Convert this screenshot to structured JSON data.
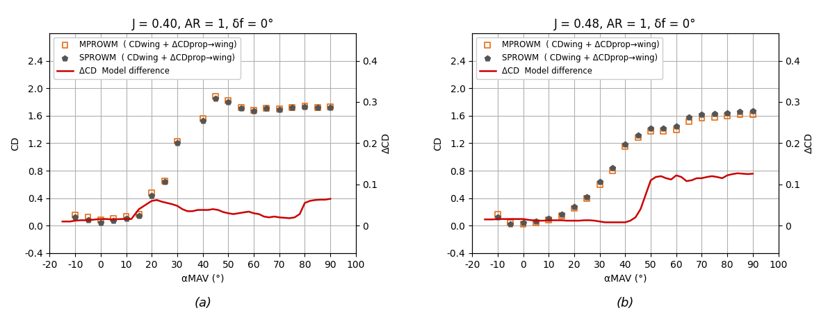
{
  "chart_data": [
    {
      "type": "scatter",
      "title": "J = 0.40, AR = 1, δf = 0°",
      "subtitle": "(a)",
      "x_label": "αMAV (°)",
      "y_label": "CD",
      "y2_label": "ΔCD",
      "xlim": [
        -20,
        100
      ],
      "xticks": [
        -20,
        -10,
        0,
        10,
        20,
        30,
        40,
        50,
        60,
        70,
        80,
        90,
        100
      ],
      "ylim": [
        -0.4,
        2.8
      ],
      "yticks": [
        -0.4,
        0.0,
        0.4,
        0.8,
        1.2,
        1.6,
        2.0,
        2.4
      ],
      "y2lim": [
        -0.06666666666666667,
        0.4666666666666667
      ],
      "y2ticks": [
        0,
        0.1,
        0.2,
        0.3,
        0.4
      ],
      "grid": true,
      "legend": "upper left",
      "series": [
        {
          "name": "MPROWM  ( CDwing + ΔCDprop→wing)",
          "type": "scatter",
          "marker": "square",
          "color": "#E87722",
          "x": [
            -10,
            -5,
            0,
            5,
            10,
            15,
            20,
            25,
            30,
            40,
            45,
            50,
            55,
            60,
            65,
            70,
            75,
            80,
            85,
            90
          ],
          "values": [
            0.155,
            0.12,
            0.08,
            0.1,
            0.13,
            0.16,
            0.48,
            0.65,
            1.23,
            1.56,
            1.88,
            1.82,
            1.72,
            1.68,
            1.71,
            1.7,
            1.72,
            1.74,
            1.72,
            1.73
          ]
        },
        {
          "name": "SPROWM  ( CDwing + ΔCDprop→wing)",
          "type": "scatter",
          "marker": "pentagon",
          "color": "#555555",
          "x": [
            -10,
            -5,
            0,
            5,
            10,
            15,
            20,
            25,
            30,
            40,
            45,
            50,
            55,
            60,
            65,
            70,
            75,
            80,
            85,
            90
          ],
          "values": [
            0.12,
            0.08,
            0.04,
            0.07,
            0.1,
            0.14,
            0.44,
            0.64,
            1.2,
            1.53,
            1.85,
            1.8,
            1.71,
            1.67,
            1.71,
            1.69,
            1.72,
            1.73,
            1.72,
            1.72
          ]
        },
        {
          "name": "ΔCD  Model difference",
          "type": "line",
          "axis": "y2",
          "color": "#CC0000",
          "x": [
            -15,
            -12,
            -10,
            -8,
            -5,
            -2,
            0,
            2,
            5,
            8,
            10,
            12,
            15,
            17,
            20,
            22,
            24,
            26,
            28,
            30,
            32,
            34,
            36,
            38,
            40,
            42,
            44,
            46,
            48,
            50,
            52,
            54,
            56,
            58,
            60,
            62,
            64,
            66,
            68,
            70,
            72,
            74,
            76,
            78,
            80,
            82,
            84,
            86,
            88,
            90
          ],
          "values": [
            0.01,
            0.01,
            0.012,
            0.013,
            0.013,
            0.015,
            0.016,
            0.016,
            0.015,
            0.016,
            0.016,
            0.016,
            0.04,
            0.048,
            0.06,
            0.062,
            0.058,
            0.055,
            0.052,
            0.048,
            0.04,
            0.035,
            0.035,
            0.038,
            0.038,
            0.038,
            0.04,
            0.038,
            0.033,
            0.03,
            0.028,
            0.03,
            0.032,
            0.034,
            0.03,
            0.028,
            0.022,
            0.02,
            0.022,
            0.02,
            0.019,
            0.018,
            0.02,
            0.028,
            0.055,
            0.06,
            0.062,
            0.063,
            0.063,
            0.065
          ]
        }
      ]
    },
    {
      "type": "scatter",
      "title": "J = 0.48, AR = 1, δf = 0°",
      "subtitle": "(b)",
      "x_label": "αMAV (°)",
      "y_label": "CD",
      "y2_label": "ΔCD",
      "xlim": [
        -20,
        100
      ],
      "xticks": [
        -20,
        -10,
        0,
        10,
        20,
        30,
        40,
        50,
        60,
        70,
        80,
        90,
        100
      ],
      "ylim": [
        -0.4,
        2.8
      ],
      "yticks": [
        -0.4,
        0.0,
        0.4,
        0.8,
        1.2,
        1.6,
        2.0,
        2.4
      ],
      "y2lim": [
        -0.06666666666666667,
        0.4666666666666667
      ],
      "y2ticks": [
        0,
        0.1,
        0.2,
        0.3,
        0.4
      ],
      "grid": true,
      "legend": "upper left",
      "series": [
        {
          "name": "MPROWM  ( CDwing + ΔCDprop→wing)",
          "type": "scatter",
          "marker": "square",
          "color": "#E87722",
          "x": [
            -10,
            -5,
            0,
            5,
            10,
            15,
            20,
            25,
            30,
            35,
            40,
            45,
            50,
            55,
            60,
            65,
            70,
            75,
            80,
            85,
            90
          ],
          "values": [
            0.16,
            0.04,
            0.02,
            0.04,
            0.08,
            0.14,
            0.25,
            0.4,
            0.6,
            0.8,
            1.15,
            1.28,
            1.38,
            1.38,
            1.4,
            1.52,
            1.57,
            1.58,
            1.6,
            1.62,
            1.62
          ]
        },
        {
          "name": "SPROWM  ( CDwing + ΔCDprop→wing)",
          "type": "scatter",
          "marker": "pentagon",
          "color": "#555555",
          "x": [
            -10,
            -5,
            0,
            5,
            10,
            15,
            20,
            25,
            30,
            35,
            40,
            45,
            50,
            55,
            60,
            65,
            70,
            75,
            80,
            85,
            90
          ],
          "values": [
            0.12,
            0.02,
            0.04,
            0.06,
            0.1,
            0.16,
            0.27,
            0.42,
            0.64,
            0.84,
            1.18,
            1.32,
            1.42,
            1.42,
            1.45,
            1.58,
            1.62,
            1.63,
            1.64,
            1.66,
            1.67
          ]
        },
        {
          "name": "ΔCD  Model difference",
          "type": "line",
          "axis": "y2",
          "color": "#CC0000",
          "x": [
            -15,
            -12,
            -10,
            -8,
            -5,
            -2,
            0,
            2,
            5,
            8,
            10,
            12,
            15,
            17,
            20,
            22,
            24,
            26,
            28,
            30,
            32,
            34,
            36,
            38,
            40,
            42,
            44,
            46,
            48,
            50,
            52,
            54,
            56,
            58,
            60,
            62,
            64,
            66,
            68,
            70,
            72,
            74,
            76,
            78,
            80,
            82,
            84,
            86,
            88,
            90
          ],
          "values": [
            0.015,
            0.015,
            0.016,
            0.016,
            0.016,
            0.016,
            0.016,
            0.014,
            0.012,
            0.012,
            0.013,
            0.013,
            0.013,
            0.012,
            0.012,
            0.012,
            0.013,
            0.013,
            0.012,
            0.01,
            0.008,
            0.008,
            0.008,
            0.008,
            0.008,
            0.012,
            0.02,
            0.04,
            0.075,
            0.11,
            0.118,
            0.12,
            0.115,
            0.112,
            0.122,
            0.118,
            0.108,
            0.11,
            0.115,
            0.115,
            0.118,
            0.12,
            0.118,
            0.115,
            0.122,
            0.125,
            0.127,
            0.126,
            0.125,
            0.126
          ]
        }
      ]
    }
  ]
}
